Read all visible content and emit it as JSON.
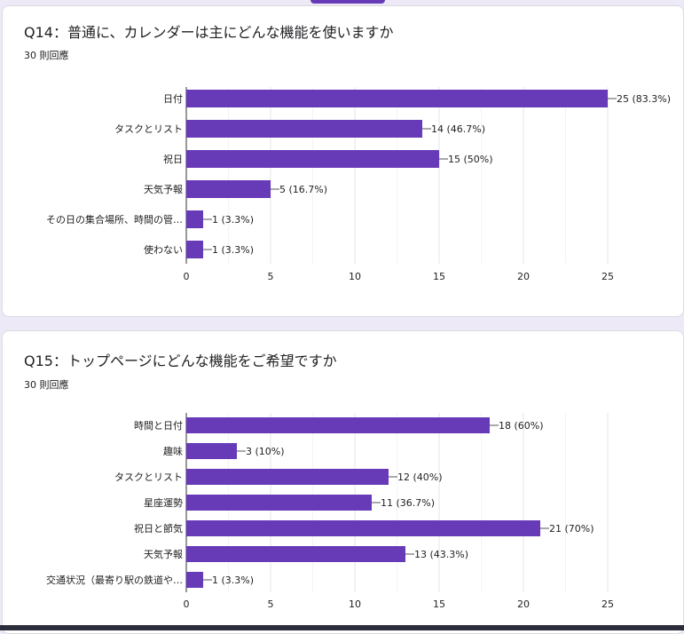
{
  "accent_color": "#673ab7",
  "chart_data": [
    {
      "type": "bar",
      "orientation": "horizontal",
      "title": "Q14：普通に、カレンダーは主にどんな機能を使いますか",
      "subtitle": "30 則回應",
      "categories": [
        "日付",
        "タスクとリスト",
        "祝日",
        "天気予報",
        "その日の集合場所、時間の管…",
        "使わない"
      ],
      "values": [
        25,
        14,
        15,
        5,
        1,
        1
      ],
      "data_labels": [
        "25 (83.3%)",
        "14 (46.7%)",
        "15 (50%)",
        "5 (16.7%)",
        "1 (3.3%)",
        "1 (3.3%)"
      ],
      "xlim": [
        0,
        25
      ],
      "xticks": [
        "0",
        "5",
        "10",
        "15",
        "20",
        "25"
      ],
      "grid": true,
      "color": "#673ab7"
    },
    {
      "type": "bar",
      "orientation": "horizontal",
      "title": "Q15：トップページにどんな機能をご希望ですか",
      "subtitle": "30 則回應",
      "categories": [
        "時間と日付",
        "趣味",
        "タスクとリスト",
        "星座運勢",
        "祝日と節気",
        "天気予報",
        "交通状況（最寄り駅の鉄道や…"
      ],
      "values": [
        18,
        3,
        12,
        11,
        21,
        13,
        1
      ],
      "data_labels": [
        "18 (60%)",
        "3 (10%)",
        "12 (40%)",
        "11 (36.7%)",
        "21 (70%)",
        "13 (43.3%)",
        "1 (3.3%)"
      ],
      "xlim": [
        0,
        25
      ],
      "xticks": [
        "0",
        "5",
        "10",
        "15",
        "20",
        "25"
      ],
      "grid": true,
      "color": "#673ab7"
    }
  ]
}
